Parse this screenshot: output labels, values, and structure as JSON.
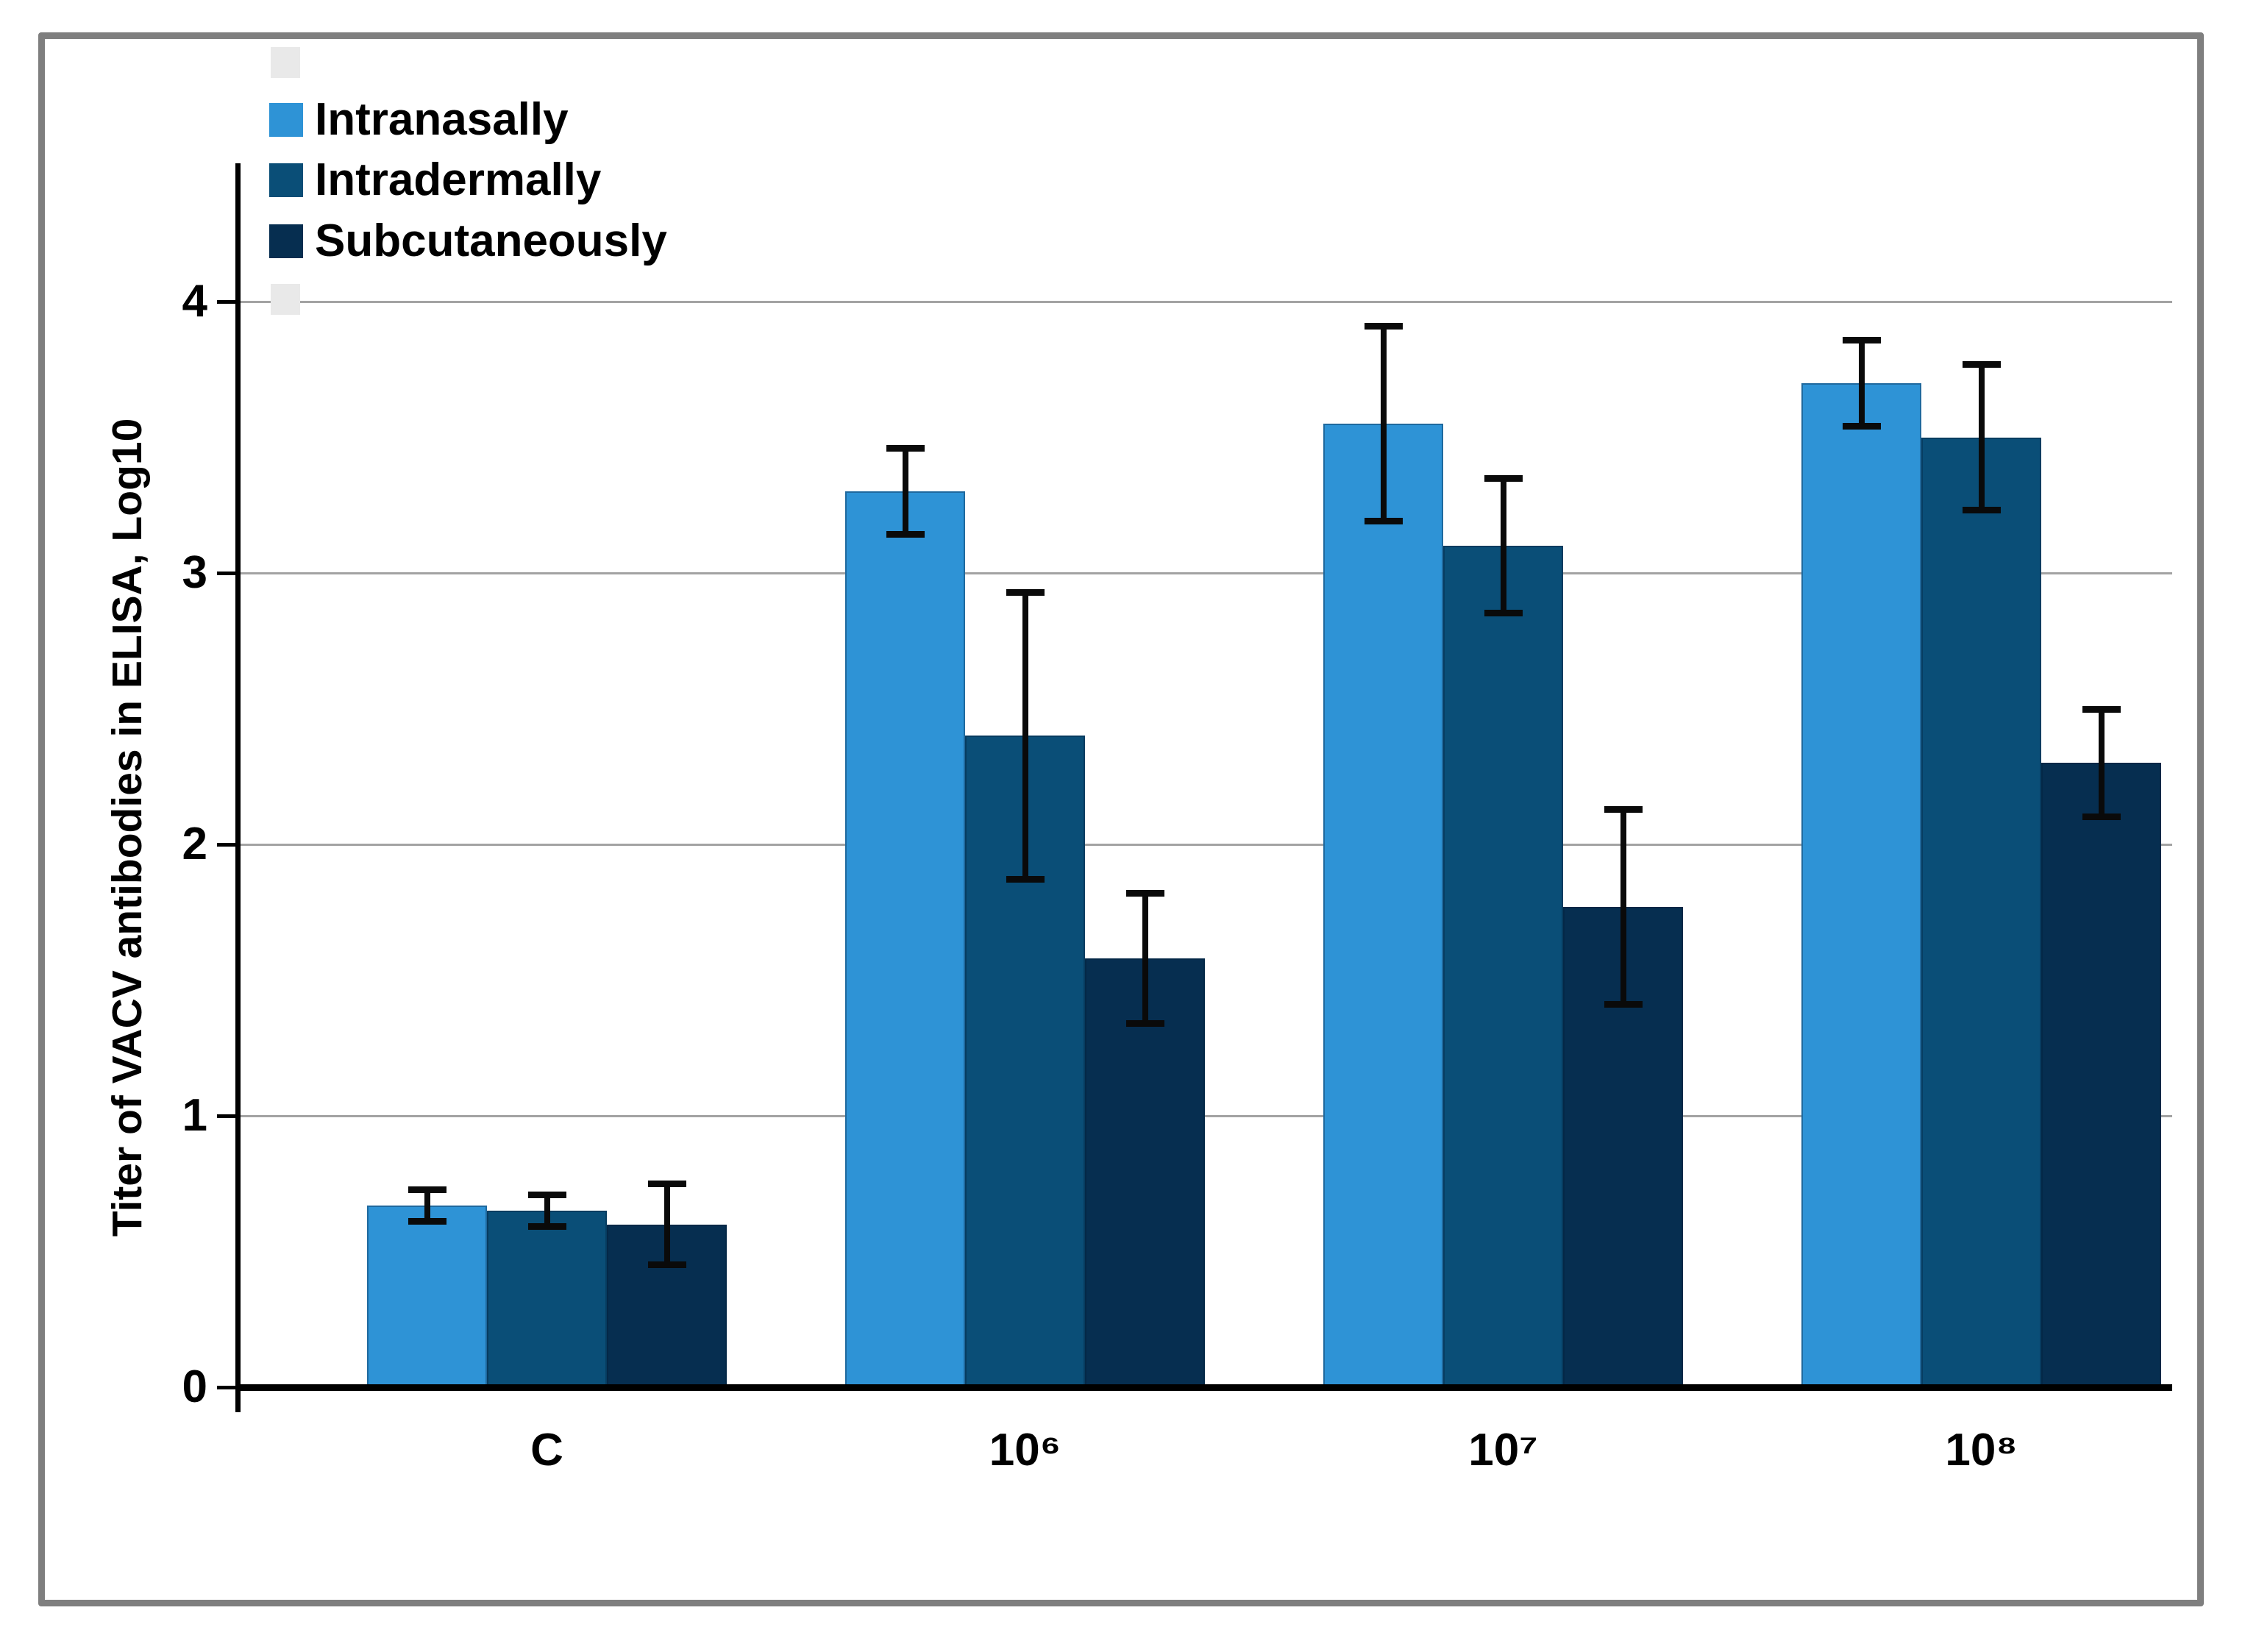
{
  "figure": {
    "y_axis_title": "Titer of VACV antibodies in ELISA, Log10"
  },
  "legend": {
    "position": "top-left",
    "entries": [
      {
        "label": "Intranasally",
        "color": "#2E93D6"
      },
      {
        "label": "Intradermally",
        "color": "#0A4E77"
      },
      {
        "label": "Subcutaneously",
        "color": "#062E50"
      }
    ],
    "placeholder_swatch_color": "#e9e9e9"
  },
  "chart_data": {
    "type": "bar",
    "title": "",
    "xlabel": "",
    "ylabel": "Titer of VACV antibodies in ELISA, Log10",
    "categories": [
      "C",
      "10⁶",
      "10⁷",
      "10⁸"
    ],
    "series": [
      {
        "name": "Intranasally",
        "color": "#2E93D6",
        "values": [
          0.67,
          3.3,
          3.55,
          3.7
        ],
        "errors": [
          0.06,
          0.16,
          0.36,
          0.16
        ]
      },
      {
        "name": "Intradermally",
        "color": "#0A4E77",
        "values": [
          0.65,
          2.4,
          3.1,
          3.5
        ],
        "errors": [
          0.06,
          0.53,
          0.25,
          0.27
        ]
      },
      {
        "name": "Subcutaneously",
        "color": "#062E50",
        "values": [
          0.6,
          1.58,
          1.77,
          2.3
        ],
        "errors": [
          0.15,
          0.24,
          0.36,
          0.2
        ]
      }
    ],
    "ylim": [
      0,
      4
    ],
    "yticks": [
      0,
      1,
      2,
      3,
      4
    ],
    "grid": true,
    "error_bars": true,
    "legend_position": "top-left"
  },
  "colors": {
    "gridline": "#a3a3a3",
    "axis": "#000000",
    "figure_border": "#7f7f7f",
    "background": "#ffffff",
    "error_bar": "#0a0a0a"
  }
}
